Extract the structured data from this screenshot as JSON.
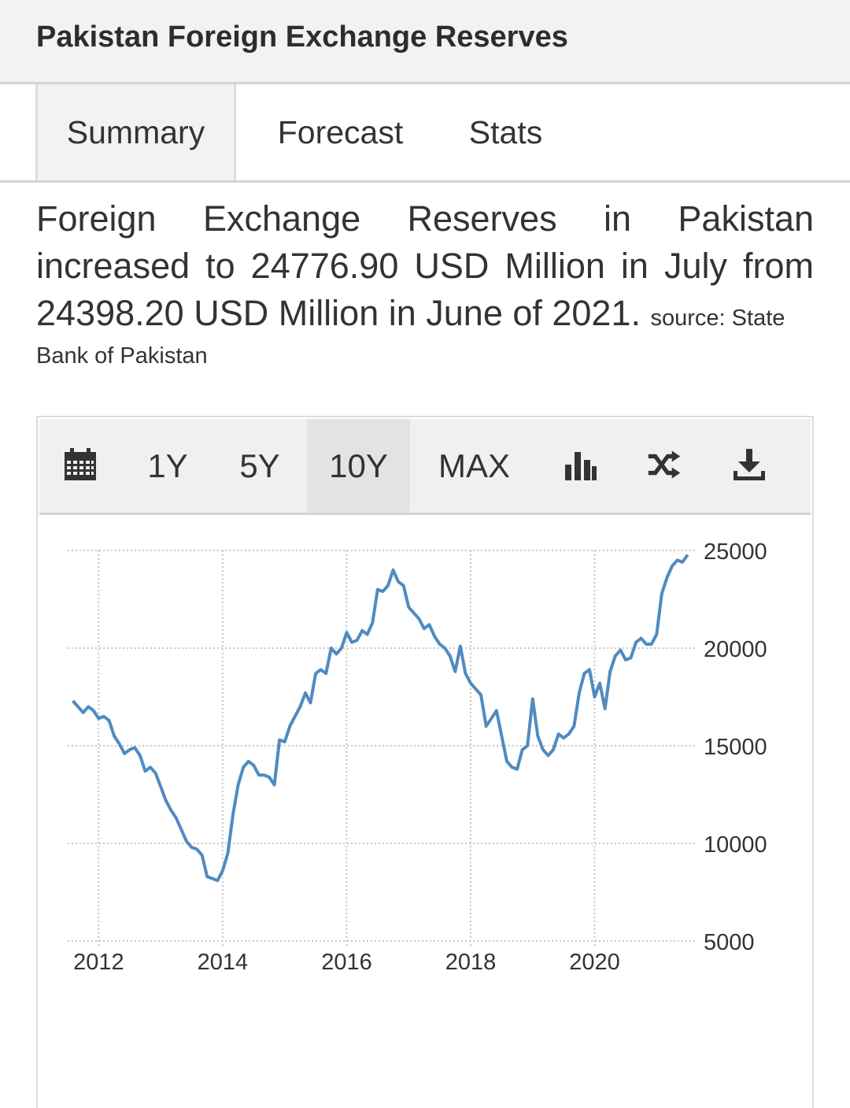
{
  "header": {
    "title": "Pakistan Foreign Exchange Reserves"
  },
  "tabs": [
    {
      "label": "Summary",
      "active": true
    },
    {
      "label": "Forecast",
      "active": false
    },
    {
      "label": "Stats",
      "active": false
    }
  ],
  "summary": {
    "text": "Foreign Exchange Reserves in Pakistan increased to 24776.90 USD Million in July from 24398.20 USD Million in June of 2021.",
    "source_prefix": "source: State",
    "source_rest": "Bank of Pakistan"
  },
  "toolbar": {
    "calendar_icon": "calendar-icon",
    "ranges": [
      "1Y",
      "5Y",
      "10Y",
      "MAX"
    ],
    "active_range": "10Y",
    "chart_type_icon": "bar-chart-icon",
    "compare_icon": "shuffle-icon",
    "download_icon": "download-icon"
  },
  "colors": {
    "line": "#4f8bc1",
    "grid": "#c8c8c8",
    "axis_text": "#333333"
  },
  "chart_data": {
    "type": "line",
    "title": "",
    "xlabel": "",
    "ylabel": "",
    "x_ticks": [
      "2012",
      "2014",
      "2016",
      "2018",
      "2020"
    ],
    "y_ticks": [
      5000,
      10000,
      15000,
      20000,
      25000
    ],
    "ylim": [
      5000,
      25000
    ],
    "xlim": [
      "2011-08",
      "2021-07"
    ],
    "y_axis_position": "right",
    "grid": true,
    "series": [
      {
        "name": "",
        "points": [
          [
            "2011-08",
            17300
          ],
          [
            "2011-09",
            17000
          ],
          [
            "2011-10",
            16700
          ],
          [
            "2011-11",
            17000
          ],
          [
            "2011-12",
            16800
          ],
          [
            "2012-01",
            16400
          ],
          [
            "2012-02",
            16500
          ],
          [
            "2012-03",
            16300
          ],
          [
            "2012-04",
            15500
          ],
          [
            "2012-05",
            15100
          ],
          [
            "2012-06",
            14600
          ],
          [
            "2012-07",
            14800
          ],
          [
            "2012-08",
            14900
          ],
          [
            "2012-09",
            14500
          ],
          [
            "2012-10",
            13700
          ],
          [
            "2012-11",
            13900
          ],
          [
            "2012-12",
            13600
          ],
          [
            "2013-01",
            12900
          ],
          [
            "2013-02",
            12200
          ],
          [
            "2013-03",
            11700
          ],
          [
            "2013-04",
            11300
          ],
          [
            "2013-05",
            10700
          ],
          [
            "2013-06",
            10100
          ],
          [
            "2013-07",
            9800
          ],
          [
            "2013-08",
            9700
          ],
          [
            "2013-09",
            9400
          ],
          [
            "2013-10",
            8300
          ],
          [
            "2013-11",
            8200
          ],
          [
            "2013-12",
            8100
          ],
          [
            "2014-01",
            8600
          ],
          [
            "2014-02",
            9500
          ],
          [
            "2014-03",
            11500
          ],
          [
            "2014-04",
            13000
          ],
          [
            "2014-05",
            13900
          ],
          [
            "2014-06",
            14200
          ],
          [
            "2014-07",
            14000
          ],
          [
            "2014-08",
            13500
          ],
          [
            "2014-09",
            13500
          ],
          [
            "2014-10",
            13400
          ],
          [
            "2014-11",
            13000
          ],
          [
            "2014-12",
            15300
          ],
          [
            "2015-01",
            15200
          ],
          [
            "2015-02",
            16000
          ],
          [
            "2015-03",
            16500
          ],
          [
            "2015-04",
            17000
          ],
          [
            "2015-05",
            17700
          ],
          [
            "2015-06",
            17200
          ],
          [
            "2015-07",
            18700
          ],
          [
            "2015-08",
            18900
          ],
          [
            "2015-09",
            18700
          ],
          [
            "2015-10",
            20000
          ],
          [
            "2015-11",
            19700
          ],
          [
            "2015-12",
            20000
          ],
          [
            "2016-01",
            20800
          ],
          [
            "2016-02",
            20300
          ],
          [
            "2016-03",
            20400
          ],
          [
            "2016-04",
            20900
          ],
          [
            "2016-05",
            20700
          ],
          [
            "2016-06",
            21300
          ],
          [
            "2016-07",
            23000
          ],
          [
            "2016-08",
            22900
          ],
          [
            "2016-09",
            23200
          ],
          [
            "2016-10",
            24000
          ],
          [
            "2016-11",
            23400
          ],
          [
            "2016-12",
            23200
          ],
          [
            "2017-01",
            22100
          ],
          [
            "2017-02",
            21800
          ],
          [
            "2017-03",
            21500
          ],
          [
            "2017-04",
            21000
          ],
          [
            "2017-05",
            21200
          ],
          [
            "2017-06",
            20600
          ],
          [
            "2017-07",
            20200
          ],
          [
            "2017-08",
            20000
          ],
          [
            "2017-09",
            19600
          ],
          [
            "2017-10",
            18800
          ],
          [
            "2017-11",
            20100
          ],
          [
            "2017-12",
            18700
          ],
          [
            "2018-01",
            18200
          ],
          [
            "2018-02",
            17900
          ],
          [
            "2018-03",
            17600
          ],
          [
            "2018-04",
            16000
          ],
          [
            "2018-05",
            16400
          ],
          [
            "2018-06",
            16800
          ],
          [
            "2018-07",
            15500
          ],
          [
            "2018-08",
            14200
          ],
          [
            "2018-09",
            13900
          ],
          [
            "2018-10",
            13800
          ],
          [
            "2018-11",
            14800
          ],
          [
            "2018-12",
            15000
          ],
          [
            "2019-01",
            17400
          ],
          [
            "2019-02",
            15500
          ],
          [
            "2019-03",
            14800
          ],
          [
            "2019-04",
            14500
          ],
          [
            "2019-05",
            14800
          ],
          [
            "2019-06",
            15600
          ],
          [
            "2019-07",
            15400
          ],
          [
            "2019-08",
            15600
          ],
          [
            "2019-09",
            16000
          ],
          [
            "2019-10",
            17700
          ],
          [
            "2019-11",
            18700
          ],
          [
            "2019-12",
            18900
          ],
          [
            "2020-01",
            17500
          ],
          [
            "2020-02",
            18200
          ],
          [
            "2020-03",
            16900
          ],
          [
            "2020-04",
            18800
          ],
          [
            "2020-05",
            19600
          ],
          [
            "2020-06",
            19900
          ],
          [
            "2020-07",
            19400
          ],
          [
            "2020-08",
            19500
          ],
          [
            "2020-09",
            20300
          ],
          [
            "2020-10",
            20500
          ],
          [
            "2020-11",
            20200
          ],
          [
            "2020-12",
            20200
          ],
          [
            "2021-01",
            20700
          ],
          [
            "2021-02",
            22800
          ],
          [
            "2021-03",
            23600
          ],
          [
            "2021-04",
            24200
          ],
          [
            "2021-05",
            24500
          ],
          [
            "2021-06",
            24398.2
          ],
          [
            "2021-07",
            24776.9
          ]
        ]
      }
    ]
  }
}
